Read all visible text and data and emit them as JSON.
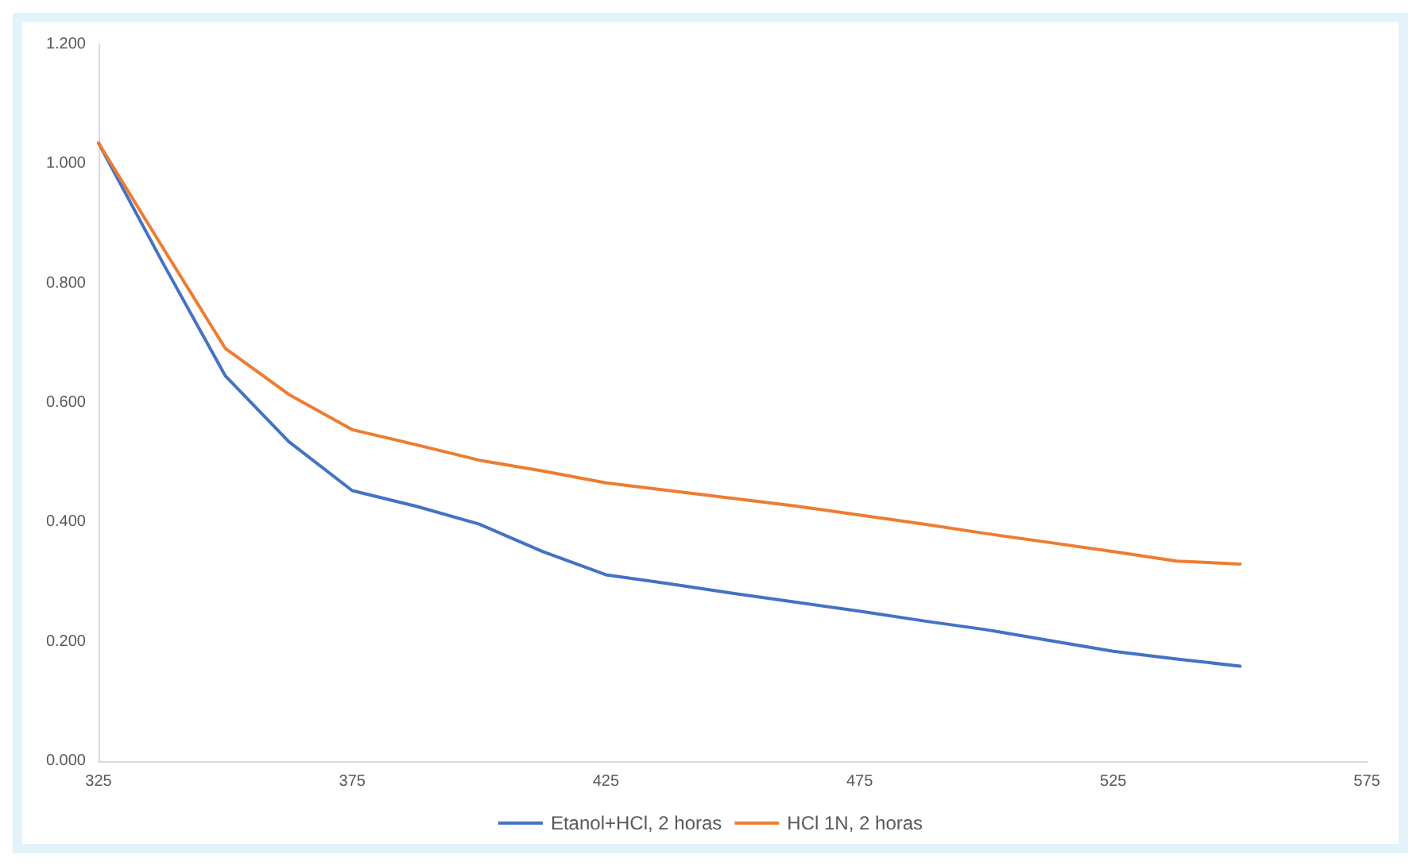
{
  "chart_data": {
    "type": "line",
    "x": [
      325,
      337.5,
      350,
      362.5,
      375,
      387.5,
      400,
      412.5,
      425,
      437.5,
      450,
      462.5,
      475,
      487.5,
      500,
      512.5,
      525,
      537.5,
      550
    ],
    "series": [
      {
        "name": "Etanol+HCl, 2 horas",
        "color": "#4472c4",
        "values": [
          1.035,
          0.837,
          0.645,
          0.535,
          0.453,
          0.427,
          0.397,
          0.351,
          0.312,
          0.297,
          0.281,
          0.266,
          0.251,
          0.235,
          0.22,
          0.202,
          0.184,
          0.171,
          0.159
        ]
      },
      {
        "name": "HCl 1N, 2 horas",
        "color": "#ed7d31",
        "values": [
          1.035,
          0.862,
          0.691,
          0.614,
          0.555,
          0.53,
          0.504,
          0.486,
          0.466,
          0.453,
          0.44,
          0.427,
          0.412,
          0.397,
          0.381,
          0.366,
          0.351,
          0.335,
          0.33
        ]
      }
    ],
    "xlim": [
      325,
      575
    ],
    "xticks": [
      325,
      375,
      425,
      475,
      525,
      575
    ],
    "ylim": [
      0,
      1.2
    ],
    "yticks": [
      {
        "value": 0,
        "label": "0.000"
      },
      {
        "value": 0.2,
        "label": "0.200"
      },
      {
        "value": 0.4,
        "label": "0.400"
      },
      {
        "value": 0.6,
        "label": "0.600"
      },
      {
        "value": 0.8,
        "label": "0.800"
      },
      {
        "value": 1,
        "label": "1.000"
      },
      {
        "value": 1.2,
        "label": "1.200"
      }
    ],
    "grid": false,
    "legend": "bottom",
    "marker": "none",
    "line_style": "solid"
  }
}
